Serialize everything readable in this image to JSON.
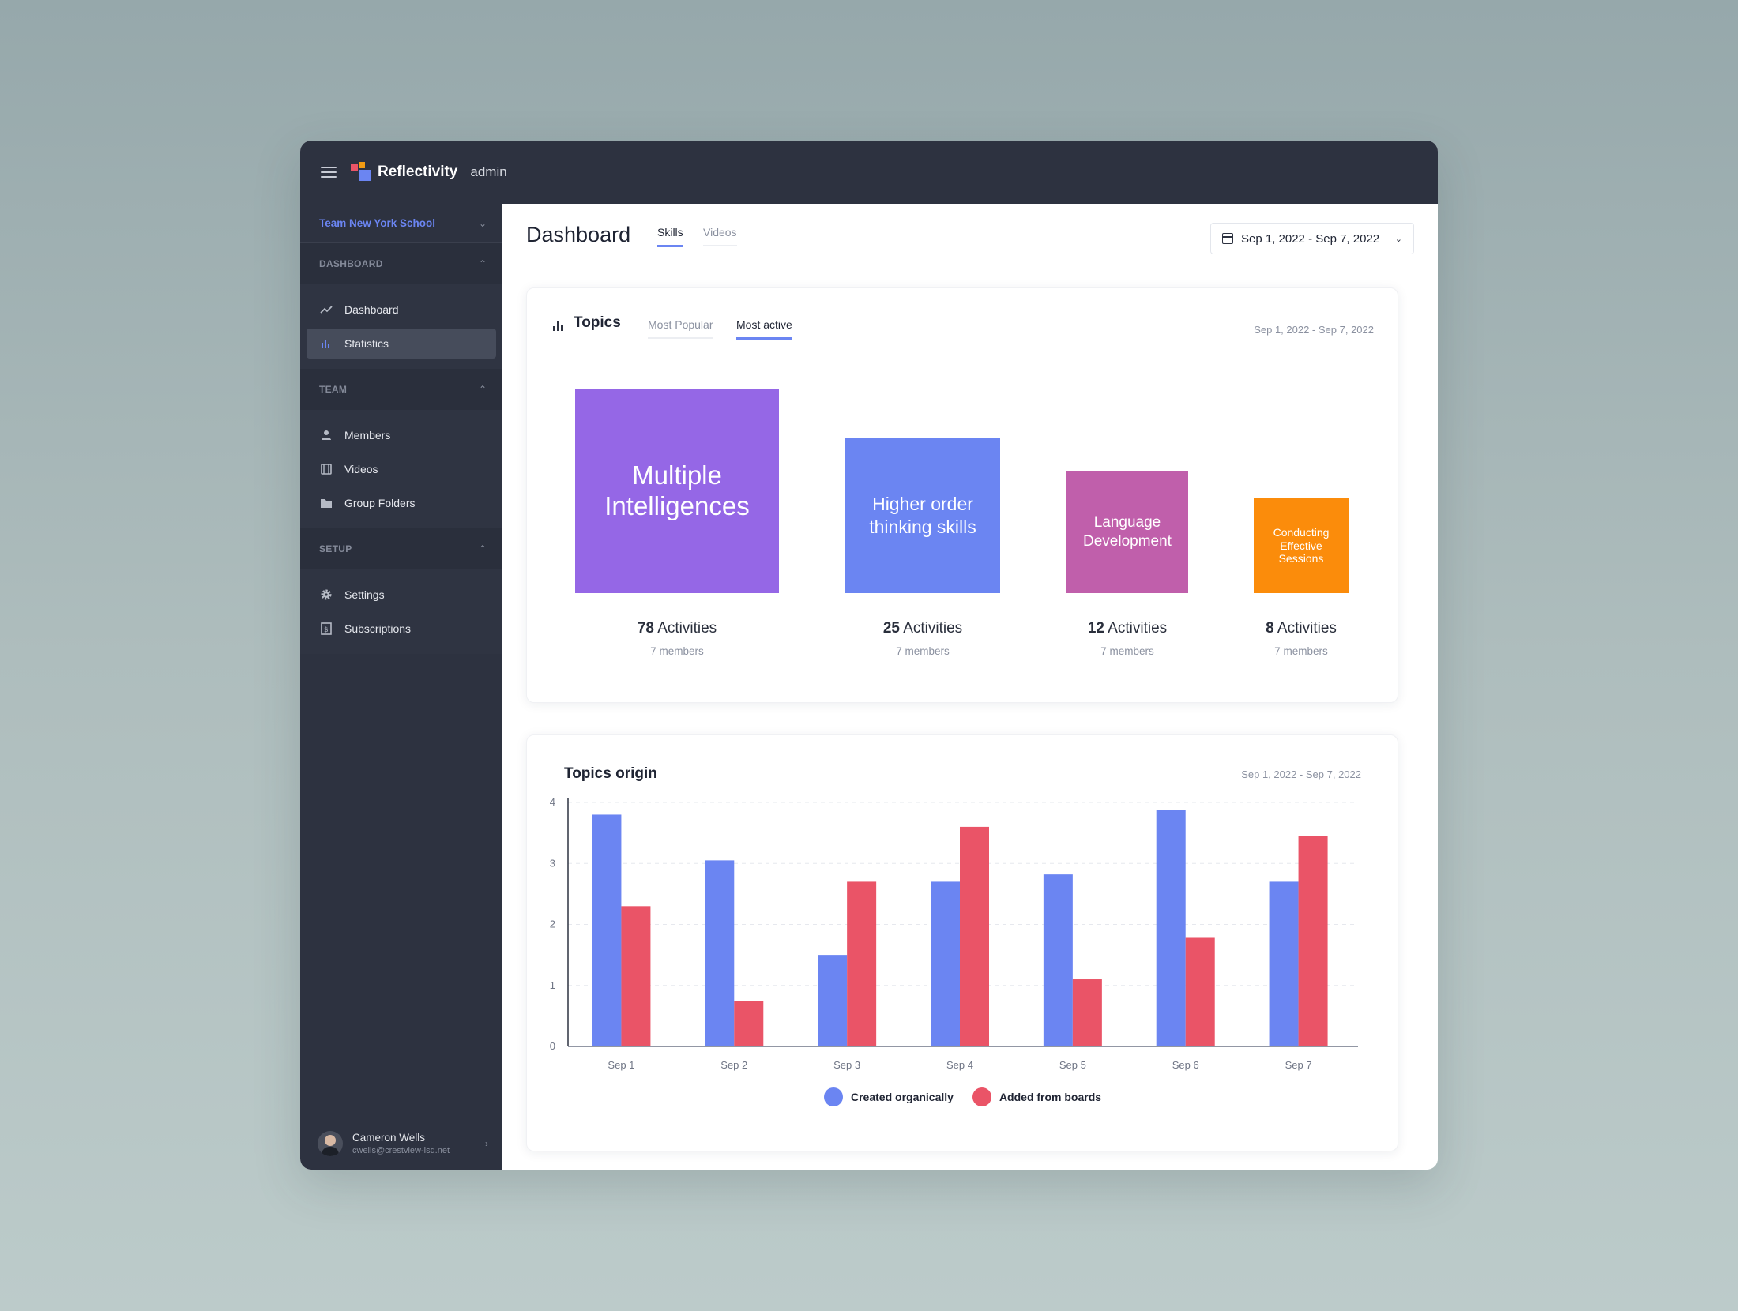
{
  "app": {
    "brand": "Reflectivity",
    "brand_sub": "admin"
  },
  "sidebar": {
    "team": "Team New York School",
    "sections": [
      {
        "title": "DASHBOARD",
        "items": [
          {
            "label": "Dashboard",
            "icon": "trend-icon",
            "active": false
          },
          {
            "label": "Statistics",
            "icon": "bar-chart-icon",
            "active": true
          }
        ]
      },
      {
        "title": "TEAM",
        "items": [
          {
            "label": "Members",
            "icon": "user-icon",
            "active": false
          },
          {
            "label": "Videos",
            "icon": "film-icon",
            "active": false
          },
          {
            "label": "Group Folders",
            "icon": "folder-icon",
            "active": false
          }
        ]
      },
      {
        "title": "SETUP",
        "items": [
          {
            "label": "Settings",
            "icon": "gear-icon",
            "active": false
          },
          {
            "label": "Subscriptions",
            "icon": "receipt-icon",
            "active": false
          }
        ]
      }
    ],
    "user": {
      "name": "Cameron Wells",
      "email": "cwells@crestview-isd.net"
    }
  },
  "header": {
    "title": "Dashboard",
    "tabs": [
      {
        "label": "Skills",
        "active": true
      },
      {
        "label": "Videos",
        "active": false
      }
    ],
    "date_range": "Sep 1, 2022 - Sep 7, 2022"
  },
  "topics": {
    "title": "Topics",
    "tabs": [
      {
        "label": "Most Popular",
        "active": false
      },
      {
        "label": "Most active",
        "active": true
      }
    ],
    "date": "Sep 1, 2022 - Sep 7, 2022",
    "items": [
      {
        "name": "Multiple Intelligences",
        "activities": "78",
        "activities_label": "Activities",
        "members": "7 members",
        "color": "#9567e6"
      },
      {
        "name": "Higher order thinking skills",
        "activities": "25",
        "activities_label": "Activities",
        "members": "7 members",
        "color": "#6b85f2"
      },
      {
        "name": "Language Development",
        "activities": "12",
        "activities_label": "Activities",
        "members": "7 members",
        "color": "#c05fab"
      },
      {
        "name": "Conducting Effective Sessions",
        "activities": "8",
        "activities_label": "Activities",
        "members": "7 members",
        "color": "#fb8c0b"
      }
    ]
  },
  "origin": {
    "title": "Topics origin",
    "date": "Sep 1, 2022 - Sep 7, 2022"
  },
  "chart_data": {
    "type": "bar",
    "categories": [
      "Sep 1",
      "Sep 2",
      "Sep 3",
      "Sep 4",
      "Sep 5",
      "Sep 6",
      "Sep 7"
    ],
    "series": [
      {
        "name": "Created organically",
        "color": "#6b85f2",
        "values": [
          3.8,
          3.05,
          1.5,
          2.7,
          2.82,
          3.88,
          2.7
        ]
      },
      {
        "name": "Added from boards",
        "color": "#ea5467",
        "values": [
          2.3,
          0.75,
          2.7,
          3.6,
          1.1,
          1.78,
          3.45
        ]
      }
    ],
    "yticks": [
      0,
      1,
      2,
      3,
      4
    ],
    "ylim": [
      0,
      4
    ],
    "grid": true,
    "legend": "bottom"
  }
}
